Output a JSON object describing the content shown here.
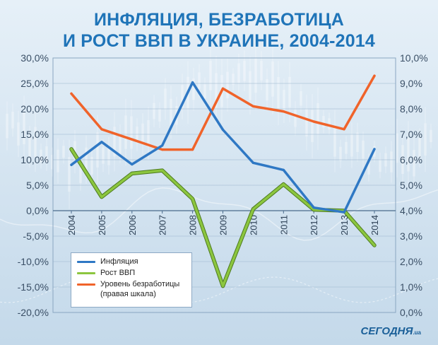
{
  "title_line1": "ИНФЛЯЦИЯ, БЕЗРАБОТИЦА",
  "title_line2": "И РОСТ ВВП В УКРАИНЕ, 2004-2014",
  "logo": {
    "name": "СЕГОДНЯ",
    "suffix": ".ua"
  },
  "chart_data": {
    "type": "line",
    "title": "ИНФЛЯЦИЯ, БЕЗРАБОТИЦА И РОСТ ВВП В УКРАИНЕ, 2004-2014",
    "x": [
      "2004",
      "2005",
      "2006",
      "2007",
      "2008",
      "2009",
      "2010",
      "2011",
      "2012",
      "2013",
      "2014"
    ],
    "y_left": {
      "min": -20,
      "max": 30,
      "step": 5,
      "ticks": [
        "-20,0%",
        "-15,0%",
        "-10,0%",
        "-5,0%",
        "0,0%",
        "5,0%",
        "10,0%",
        "15,0%",
        "20,0%",
        "25,0%",
        "30,0%"
      ]
    },
    "y_right": {
      "min": 0,
      "max": 10,
      "step": 1,
      "ticks": [
        "0,0%",
        "1,0%",
        "2,0%",
        "3,0%",
        "4,0%",
        "5,0%",
        "6,0%",
        "7,0%",
        "8,0%",
        "9,0%",
        "10,0%"
      ]
    },
    "series": [
      {
        "name": "Инфляция",
        "axis": "left",
        "color": "#2f78c4",
        "values": [
          9.0,
          13.5,
          9.1,
          12.8,
          25.2,
          15.9,
          9.4,
          8.0,
          0.6,
          -0.3,
          12.1
        ]
      },
      {
        "name": "Рост ВВП",
        "axis": "left",
        "color": "#8cc63f",
        "values": [
          12.1,
          2.7,
          7.3,
          7.9,
          2.3,
          -14.8,
          0.3,
          5.2,
          0.2,
          0.0,
          -6.8
        ]
      },
      {
        "name": "Уровень безработицы",
        "sub": "(правая шкала)",
        "axis": "right",
        "color": "#f0632a",
        "values": [
          8.6,
          7.2,
          6.8,
          6.4,
          6.4,
          8.8,
          8.1,
          7.9,
          7.5,
          7.2,
          9.3
        ]
      }
    ],
    "legend_position": "bottom-left",
    "grid": true
  }
}
